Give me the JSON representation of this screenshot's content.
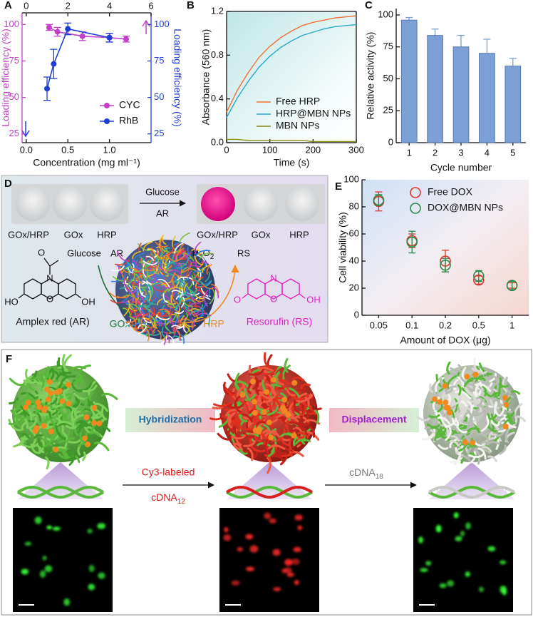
{
  "chart_data": [
    {
      "label": "A",
      "type": "line",
      "markers": true,
      "xlabel": "Concentration (mg ml⁻¹)",
      "ylabel": "Loading efficiency (%)",
      "y2label": "Loading efficiency (%)",
      "xlim": [
        -0.05,
        1.5
      ],
      "xticks": [
        {
          "value": 0,
          "label": "0.0"
        },
        0.5,
        {
          "value": 1,
          "label": "1.0"
        }
      ],
      "x2lim": [
        -0.2,
        6
      ],
      "x2ticks": [
        0,
        2,
        4,
        6
      ],
      "ylim": [
        19,
        108
      ],
      "yticks": [
        25,
        50,
        75,
        100
      ],
      "y2lim": [
        19,
        108
      ],
      "y2ticks": [
        25,
        50,
        75,
        100
      ],
      "legend": "lower right",
      "series": [
        {
          "name": "CYC",
          "color": "#c13fc9",
          "xaxis": "x2",
          "x": [
            1.1,
            1.5,
            2.7,
            4,
            4.8
          ],
          "values": [
            98,
            95,
            92,
            91,
            90
          ],
          "errors": [
            2,
            3,
            3,
            3,
            2
          ]
        },
        {
          "name": "RhB",
          "color": "#1e3ed6",
          "axis": "y2",
          "x": [
            0.25,
            0.33,
            0.5,
            1.0
          ],
          "values": [
            56,
            73,
            97,
            91
          ],
          "errors": [
            8,
            10,
            4,
            3
          ]
        }
      ]
    },
    {
      "label": "B",
      "type": "line",
      "xlabel": "Time (s)",
      "ylabel": "Absorbance (560 nm)",
      "x": [
        0,
        25,
        50,
        75,
        100,
        125,
        150,
        175,
        200,
        225,
        250,
        275,
        300
      ],
      "xlim": [
        0,
        300
      ],
      "xticks": [
        0,
        100,
        200,
        300
      ],
      "ylim": [
        0,
        1.2
      ],
      "yticks": [
        {
          "value": 0,
          "label": "0.0"
        },
        0.4,
        0.8,
        1.2
      ],
      "legend": "lower right",
      "series": [
        {
          "name": "Free HRP",
          "color": "#f07030",
          "values": [
            0.28,
            0.48,
            0.64,
            0.78,
            0.88,
            0.96,
            1.02,
            1.07,
            1.1,
            1.12,
            1.14,
            1.15,
            1.16
          ]
        },
        {
          "name": "HRP@MBN NPs",
          "color": "#2aa8c8",
          "values": [
            0.23,
            0.41,
            0.56,
            0.69,
            0.79,
            0.87,
            0.93,
            0.98,
            1.01,
            1.04,
            1.06,
            1.07,
            1.08
          ]
        },
        {
          "name": "MBN NPs",
          "color": "#8a8a10",
          "values": [
            0.03,
            0.03,
            0.02,
            0.02,
            0.02,
            0.02,
            0.02,
            0.02,
            0.01,
            0.01,
            0.01,
            0.01,
            0.01
          ]
        }
      ]
    },
    {
      "label": "C",
      "type": "bar",
      "xlabel": "Cycle number",
      "ylabel": "Relative activity (%)",
      "categories": [
        "1",
        "2",
        "3",
        "4",
        "5"
      ],
      "values": [
        96,
        84,
        75,
        70,
        60
      ],
      "errors": [
        2,
        5,
        9,
        11,
        6
      ],
      "color": "#7c9fd6",
      "ylim": [
        0,
        105
      ],
      "yticks": [
        0,
        25,
        50,
        75,
        100
      ]
    },
    {
      "label": "E",
      "type": "scatter",
      "xlabel": "Amount of DOX (μg)",
      "ylabel": "Cell viability (%)",
      "categories": [
        "0.05",
        "0.1",
        "0.2",
        "0.5",
        "1"
      ],
      "ylim": [
        0,
        100
      ],
      "yticks": [
        0,
        20,
        40,
        60,
        80,
        100
      ],
      "legend": "upper right",
      "series": [
        {
          "name": "Free DOX",
          "color": "#e0342f",
          "values": [
            84,
            55,
            40,
            26,
            22
          ],
          "errors": [
            7,
            5,
            8,
            3,
            2
          ]
        },
        {
          "name": "DOX@MBN NPs",
          "color": "#2a8a4a",
          "values": [
            85,
            54,
            37,
            29,
            22
          ],
          "errors": [
            4,
            8,
            5,
            4,
            3
          ]
        }
      ]
    }
  ],
  "panel_d": {
    "label": "D",
    "wells_before": [
      "GOx/HRP",
      "GOx",
      "HRP"
    ],
    "wells_after": [
      "GOx/HRP",
      "GOx",
      "HRP"
    ],
    "arrow_top": "Glucose",
    "arrow_bottom": "AR",
    "glucose": "Glucose",
    "ar": "AR",
    "h2o2": [
      "H",
      "2",
      "O",
      "2"
    ],
    "rs": "RS",
    "amplex_name": "Amplex red (AR)",
    "amplex_atoms": [
      "O",
      "N",
      "O",
      "HO",
      "OH"
    ],
    "gox": "GOx",
    "hrp": "HRP",
    "resorufin_name": "Resorufin (RS)",
    "resorufin_atoms": [
      "N",
      "O",
      "O",
      "OH"
    ]
  },
  "panel_f": {
    "label": "F",
    "hybridization": "Hybridization",
    "displacement": "Displacement",
    "cy3": "Cy3-labeled",
    "cdna12": [
      "cDNA",
      "12"
    ],
    "cdna18": [
      "cDNA",
      "18"
    ]
  }
}
